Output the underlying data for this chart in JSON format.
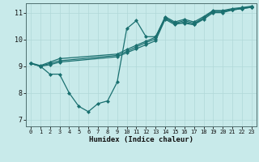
{
  "background_color": "#c8eaea",
  "grid_color": "#b0d8d8",
  "line_color": "#1a7070",
  "marker_color": "#1a7070",
  "xlabel": "Humidex (Indice chaleur)",
  "xlim": [
    -0.5,
    23.5
  ],
  "ylim": [
    6.75,
    11.35
  ],
  "yticks": [
    7,
    8,
    9,
    10,
    11
  ],
  "xticks": [
    0,
    1,
    2,
    3,
    4,
    5,
    6,
    7,
    8,
    9,
    10,
    11,
    12,
    13,
    14,
    15,
    16,
    17,
    18,
    19,
    20,
    21,
    22,
    23
  ],
  "series1_x": [
    0,
    1,
    2,
    3,
    4,
    5,
    6,
    7,
    8,
    9,
    10,
    11,
    12,
    13,
    14,
    15,
    16,
    17,
    18,
    19,
    20,
    21,
    22,
    23
  ],
  "series1_y": [
    9.1,
    9.0,
    8.7,
    8.7,
    8.0,
    7.5,
    7.3,
    7.6,
    7.7,
    8.4,
    10.4,
    10.7,
    10.1,
    10.1,
    10.8,
    10.6,
    10.6,
    10.55,
    10.8,
    11.05,
    11.05,
    11.1,
    11.15,
    11.2
  ],
  "series2_x": [
    0,
    1,
    2,
    3,
    9,
    10,
    11,
    12,
    13,
    14,
    15,
    16,
    17,
    18,
    19,
    20,
    21,
    22,
    23
  ],
  "series2_y": [
    9.1,
    9.0,
    9.05,
    9.15,
    9.35,
    9.5,
    9.65,
    9.8,
    9.95,
    10.75,
    10.55,
    10.65,
    10.55,
    10.75,
    11.0,
    11.0,
    11.1,
    11.15,
    11.2
  ],
  "series3_x": [
    0,
    1,
    2,
    3,
    9,
    10,
    11,
    12,
    13,
    14,
    15,
    16,
    17,
    18,
    19,
    20,
    21,
    22,
    23
  ],
  "series3_y": [
    9.1,
    9.0,
    9.1,
    9.2,
    9.4,
    9.55,
    9.72,
    9.88,
    10.02,
    10.8,
    10.6,
    10.7,
    10.6,
    10.8,
    11.05,
    11.05,
    11.12,
    11.17,
    11.22
  ],
  "series4_x": [
    0,
    1,
    2,
    3,
    9,
    10,
    11,
    12,
    13,
    14,
    15,
    16,
    17,
    18,
    19,
    20,
    21,
    22,
    23
  ],
  "series4_y": [
    9.12,
    9.02,
    9.15,
    9.28,
    9.45,
    9.62,
    9.78,
    9.93,
    10.08,
    10.85,
    10.65,
    10.75,
    10.65,
    10.85,
    11.08,
    11.08,
    11.15,
    11.19,
    11.24
  ]
}
